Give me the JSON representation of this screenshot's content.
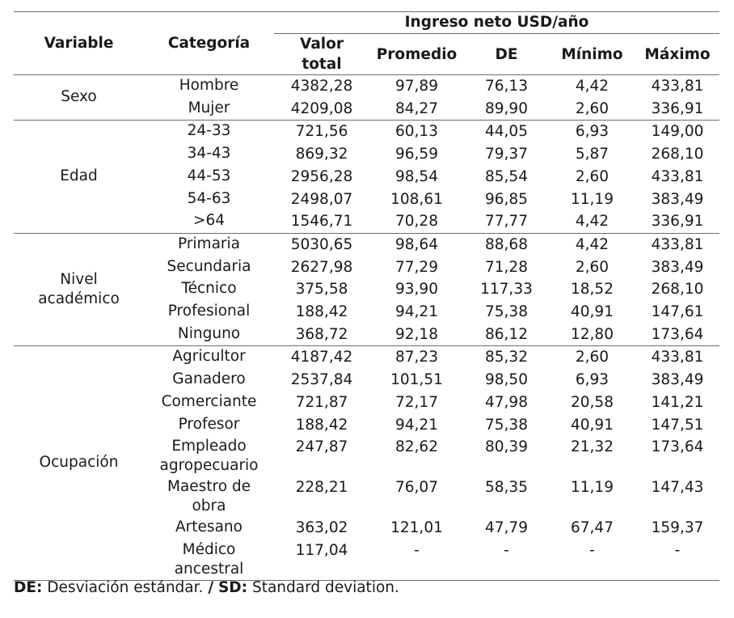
{
  "header": {
    "variable": "Variable",
    "categoria": "Categoría",
    "group": "Ingreso neto USD/año",
    "cols": [
      "Valor total",
      "Promedio",
      "DE",
      "Mínimo",
      "Máximo"
    ]
  },
  "groups": [
    {
      "variable": "Sexo",
      "rows": [
        {
          "cat": "Hombre",
          "vals": [
            "4382,28",
            "97,89",
            "76,13",
            "4,42",
            "433,81"
          ]
        },
        {
          "cat": "Mujer",
          "vals": [
            "4209,08",
            "84,27",
            "89,90",
            "2,60",
            "336,91"
          ]
        }
      ]
    },
    {
      "variable": "Edad",
      "rows": [
        {
          "cat": "24-33",
          "vals": [
            "721,56",
            "60,13",
            "44,05",
            "6,93",
            "149,00"
          ]
        },
        {
          "cat": "34-43",
          "vals": [
            "869,32",
            "96,59",
            "79,37",
            "5,87",
            "268,10"
          ]
        },
        {
          "cat": "44-53",
          "vals": [
            "2956,28",
            "98,54",
            "85,54",
            "2,60",
            "433,81"
          ]
        },
        {
          "cat": "54-63",
          "vals": [
            "2498,07",
            "108,61",
            "96,85",
            "11,19",
            "383,49"
          ]
        },
        {
          "cat": ">64",
          "vals": [
            "1546,71",
            "70,28",
            "77,77",
            "4,42",
            "336,91"
          ]
        }
      ]
    },
    {
      "variable": "Nivel académico",
      "rows": [
        {
          "cat": "Primaria",
          "vals": [
            "5030,65",
            "98,64",
            "88,68",
            "4,42",
            "433,81"
          ]
        },
        {
          "cat": "Secundaria",
          "vals": [
            "2627,98",
            "77,29",
            "71,28",
            "2,60",
            "383,49"
          ]
        },
        {
          "cat": "Técnico",
          "vals": [
            "375,58",
            "93,90",
            "117,33",
            "18,52",
            "268,10"
          ]
        },
        {
          "cat": "Profesional",
          "vals": [
            "188,42",
            "94,21",
            "75,38",
            "40,91",
            "147,61"
          ]
        },
        {
          "cat": "Ninguno",
          "vals": [
            "368,72",
            "92,18",
            "86,12",
            "12,80",
            "173,64"
          ]
        }
      ]
    },
    {
      "variable": "Ocupación",
      "rows": [
        {
          "cat": "Agricultor",
          "vals": [
            "4187,42",
            "87,23",
            "85,32",
            "2,60",
            "433,81"
          ]
        },
        {
          "cat": "Ganadero",
          "vals": [
            "2537,84",
            "101,51",
            "98,50",
            "6,93",
            "383,49"
          ]
        },
        {
          "cat": "Comerciante",
          "vals": [
            "721,87",
            "72,17",
            "47,98",
            "20,58",
            "141,21"
          ]
        },
        {
          "cat": "Profesor",
          "vals": [
            "188,42",
            "94,21",
            "75,38",
            "40,91",
            "147,51"
          ]
        },
        {
          "cat": "Empleado agropecuario",
          "vals": [
            "247,87",
            "82,62",
            "80,39",
            "21,32",
            "173,64"
          ]
        },
        {
          "cat": "Maestro de obra",
          "vals": [
            "228,21",
            "76,07",
            "58,35",
            "11,19",
            "147,43"
          ]
        },
        {
          "cat": "Artesano",
          "vals": [
            "363,02",
            "121,01",
            "47,79",
            "67,47",
            "159,37"
          ]
        },
        {
          "cat": "Médico ancestral",
          "vals": [
            "117,04",
            "-",
            "-",
            "-",
            "-"
          ]
        }
      ]
    }
  ],
  "note": {
    "de_abbr": "DE:",
    "de_text": "Desviación estándar.",
    "sep": "/",
    "sd_abbr": "SD:",
    "sd_text": "Standard deviation."
  }
}
